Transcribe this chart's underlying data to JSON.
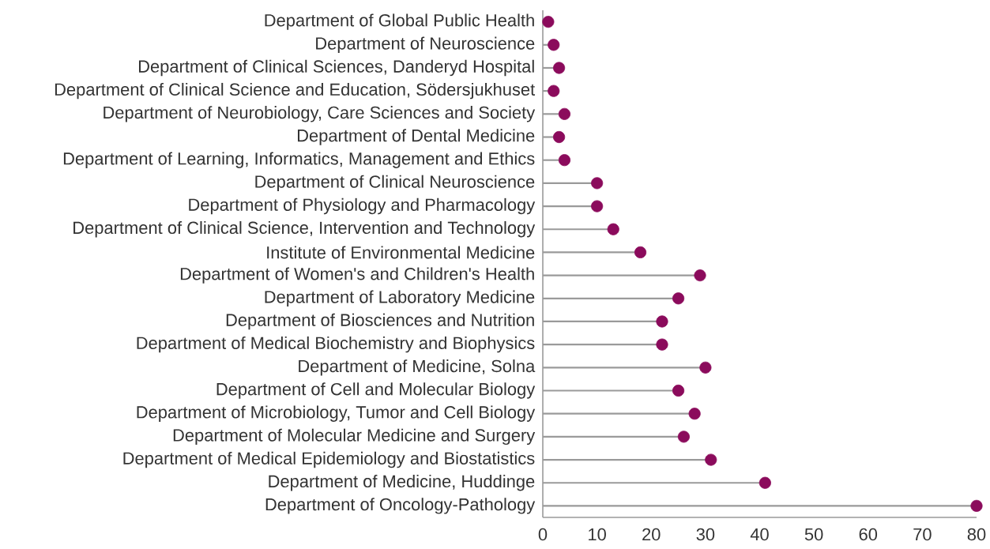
{
  "chart_data": {
    "type": "lollipop",
    "orientation": "horizontal",
    "categories": [
      "Department of Global Public Health",
      "Department of Neuroscience",
      "Department of Clinical Sciences, Danderyd Hospital",
      "Department of Clinical Science and Education, Södersjukhuset",
      "Department of Neurobiology, Care Sciences and Society",
      "Department of Dental Medicine",
      "Department of Learning, Informatics, Management and Ethics",
      "Department of Clinical Neuroscience",
      "Department of Physiology and Pharmacology",
      "Department of Clinical Science, Intervention and Technology",
      "Institute of Environmental Medicine",
      "Department of Women's and Children's Health",
      "Department of Laboratory Medicine",
      "Department of Biosciences and Nutrition",
      "Department of Medical Biochemistry and Biophysics",
      "Department of Medicine, Solna",
      "Department of Cell and Molecular Biology",
      "Department of Microbiology, Tumor and Cell Biology",
      "Department of Molecular Medicine and Surgery",
      "Department of Medical Epidemiology and Biostatistics",
      "Department of Medicine, Huddinge",
      "Department of Oncology-Pathology"
    ],
    "values": [
      1,
      2,
      3,
      2,
      4,
      3,
      4,
      10,
      10,
      13,
      18,
      29,
      25,
      22,
      22,
      30,
      25,
      28,
      26,
      31,
      41,
      80
    ],
    "color": "#8b0b5c",
    "xlim": [
      0,
      80
    ],
    "xticks": [
      0,
      10,
      20,
      30,
      40,
      50,
      60,
      70,
      80
    ]
  }
}
